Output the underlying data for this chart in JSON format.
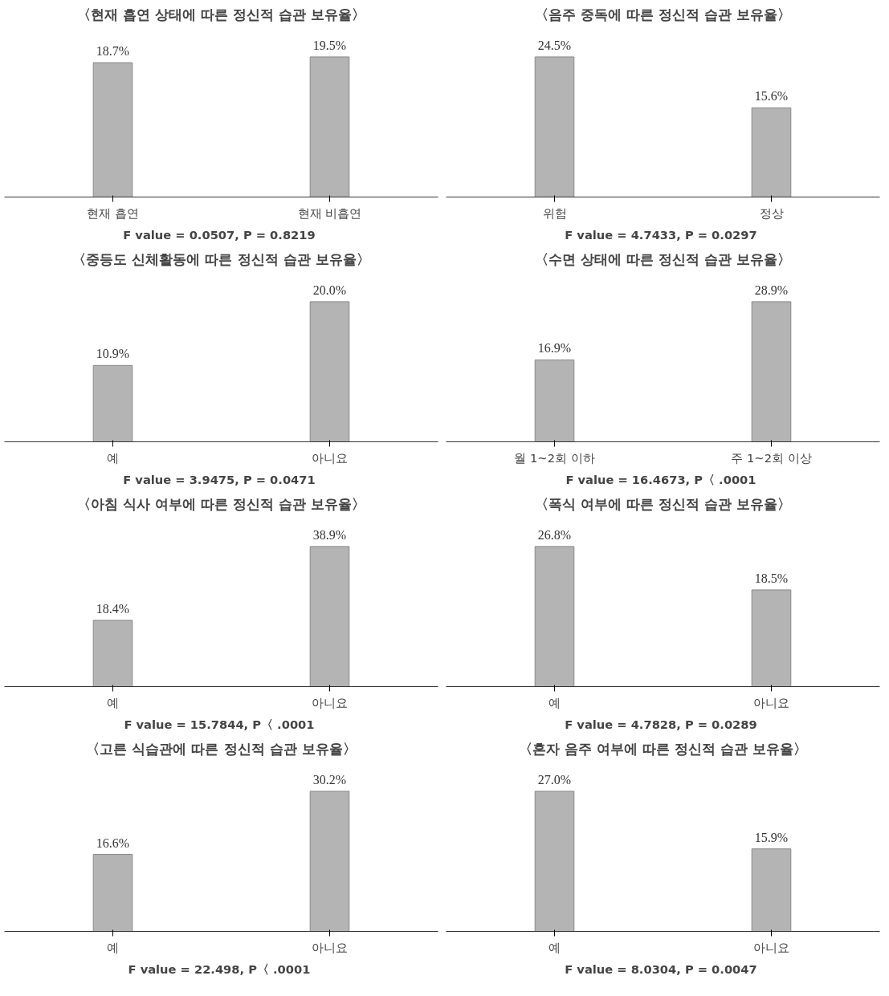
{
  "chart_data": [
    {
      "type": "bar",
      "title": "〈현재 흡연 상태에 따른 정신적 습관 보유율〉",
      "categories": [
        "현재 흡연",
        "현재 비흡연"
      ],
      "values": [
        18.7,
        19.5
      ],
      "value_labels": [
        "18.7%",
        "19.5%"
      ],
      "color": "#b4b4b4",
      "annotations": [
        "F value = 0.0507,  P = 0.8219"
      ]
    },
    {
      "type": "bar",
      "title": "〈음주 중독에 따른 정신적 습관 보유율〉",
      "categories": [
        "위험",
        "정상"
      ],
      "values": [
        24.5,
        15.6
      ],
      "value_labels": [
        "24.5%",
        "15.6%"
      ],
      "color": "#b4b4b4",
      "annotations": [
        "F value = 4.7433,  P = 0.0297"
      ]
    },
    {
      "type": "bar",
      "title": "〈중등도 신체활동에 따른 정신적 습관 보유율〉",
      "categories": [
        "예",
        "아니요"
      ],
      "values": [
        10.9,
        20.0
      ],
      "value_labels": [
        "10.9%",
        "20.0%"
      ],
      "color": "#b4b4b4",
      "annotations": [
        "F value = 3.9475,  P = 0.0471"
      ]
    },
    {
      "type": "bar",
      "title": "〈수면 상태에 따른 정신적 습관 보유율〉",
      "categories": [
        "월 1~2회 이하",
        "주 1~2회 이상"
      ],
      "values": [
        16.9,
        28.9
      ],
      "value_labels": [
        "16.9%",
        "28.9%"
      ],
      "color": "#b4b4b4",
      "annotations": [
        "F value = 16.4673,  P〈 .0001"
      ]
    },
    {
      "type": "bar",
      "title": "〈아침 식사 여부에 따른 정신적 습관 보유율〉",
      "categories": [
        "예",
        "아니요"
      ],
      "values": [
        18.4,
        38.9
      ],
      "value_labels": [
        "18.4%",
        "38.9%"
      ],
      "color": "#b4b4b4",
      "annotations": [
        "F value = 15.7844,  P〈 .0001"
      ]
    },
    {
      "type": "bar",
      "title": "〈폭식 여부에 따른 정신적 습관 보유율〉",
      "categories": [
        "예",
        "아니요"
      ],
      "values": [
        26.8,
        18.5
      ],
      "value_labels": [
        "26.8%",
        "18.5%"
      ],
      "color": "#b4b4b4",
      "annotations": [
        "F value = 4.7828,  P = 0.0289"
      ]
    },
    {
      "type": "bar",
      "title": "〈고른 식습관에 따른 정신적 습관 보유율〉",
      "categories": [
        "예",
        "아니요"
      ],
      "values": [
        16.6,
        30.2
      ],
      "value_labels": [
        "16.6%",
        "30.2%"
      ],
      "color": "#b4b4b4",
      "annotations": [
        "F value = 22.498,  P〈 .0001"
      ]
    },
    {
      "type": "bar",
      "title": "〈혼자 음주 여부에 따른 정신적 습관 보유율〉",
      "categories": [
        "예",
        "아니요"
      ],
      "values": [
        27.0,
        15.9
      ],
      "value_labels": [
        "27.0%",
        "15.9%"
      ],
      "color": "#b4b4b4",
      "annotations": [
        "F value = 8.0304,  P = 0.0047"
      ]
    }
  ]
}
